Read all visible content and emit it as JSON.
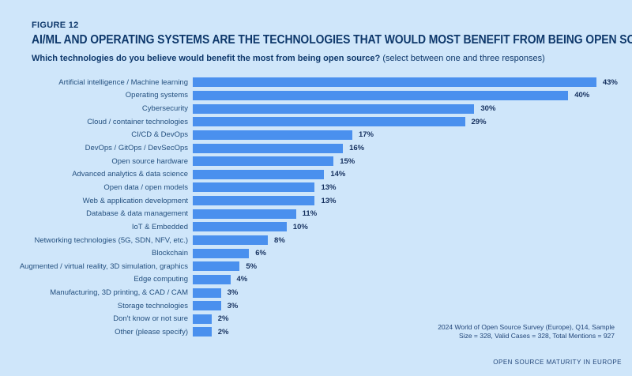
{
  "header": {
    "figure_label": "FIGURE 12",
    "title": "AI/ML AND OPERATING SYSTEMS ARE THE TECHNOLOGIES THAT WOULD MOST BENEFIT FROM BEING OPEN SOURCE",
    "question_bold": "Which technologies do you believe would benefit the most from being open source?",
    "question_note": "(select between one and three responses)"
  },
  "chart_data": {
    "type": "bar",
    "orientation": "horizontal",
    "categories": [
      "Artificial intelligence / Machine learning",
      "Operating systems",
      "Cybersecurity",
      "Cloud / container technologies",
      "CI/CD & DevOps",
      "DevOps / GitOps / DevSecOps",
      "Open source hardware",
      "Advanced analytics & data science",
      "Open data / open models",
      "Web & application development",
      "Database & data management",
      "IoT & Embedded",
      "Networking technologies (5G, SDN, NFV, etc.)",
      "Blockchain",
      "Augmented / virtual reality, 3D simulation, graphics",
      "Edge computing",
      "Manufacturing, 3D printing, & CAD / CAM",
      "Storage technologies",
      "Don't know or not sure",
      "Other (please specify)"
    ],
    "values": [
      43,
      40,
      30,
      29,
      17,
      16,
      15,
      14,
      13,
      13,
      11,
      10,
      8,
      6,
      5,
      4,
      3,
      3,
      2,
      2
    ],
    "value_suffix": "%",
    "xlim": [
      0,
      45
    ],
    "grid": false,
    "legend": "none",
    "title": "AI/ML AND OPERATING SYSTEMS ARE THE TECHNOLOGIES THAT WOULD MOST BENEFIT FROM BEING OPEN SOURCE",
    "xlabel": "",
    "ylabel": ""
  },
  "source": {
    "line1": "2024 World of Open Source Survey (Europe), Q14, Sample",
    "line2": "Size = 328, Valid Cases = 328, Total Mentions = 927"
  },
  "footer": {
    "brand": "OPEN SOURCE MATURITY IN EUROPE"
  },
  "colors": {
    "background": "#cfe6fa",
    "bar": "#4a90ee",
    "title": "#0e386b",
    "category_label": "#24507f",
    "value_label": "#16315f"
  }
}
